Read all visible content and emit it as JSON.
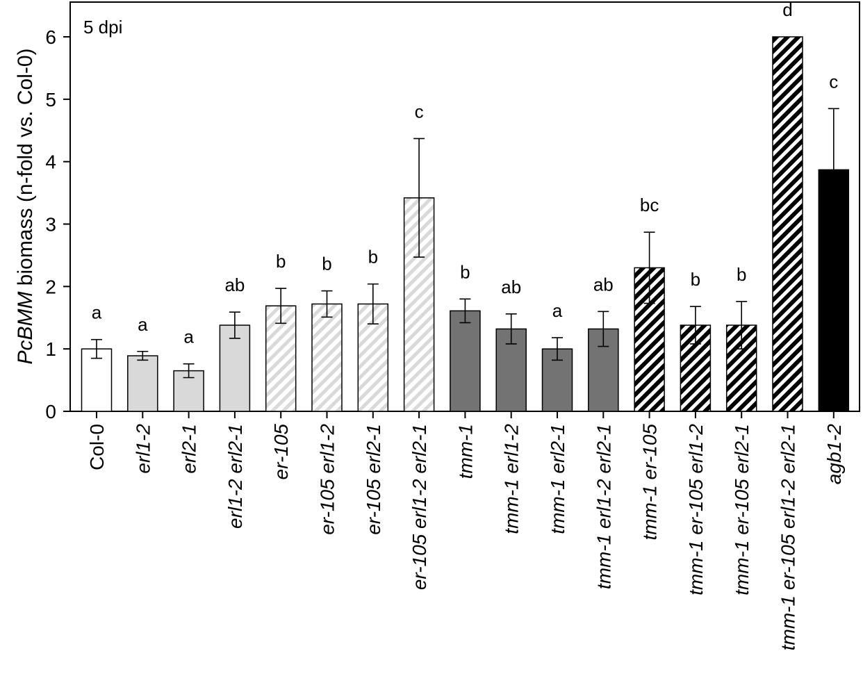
{
  "chart_data": {
    "type": "bar",
    "annotation": "5 dpi",
    "ylabel_italic": "PcBMM",
    "ylabel_rest": " biomass (n-fold vs. Col-0)",
    "xlabel": "",
    "ylim": [
      0,
      6.5
    ],
    "yticks": [
      "0",
      "1",
      "2",
      "3",
      "4",
      "5",
      "6"
    ],
    "grid": false,
    "categories": [
      "Col-0",
      "erl1-2",
      "erl2-1",
      "erl1-2 erl2-1",
      "er-105",
      "er-105 erl1-2",
      "er-105 erl2-1",
      "er-105 erl1-2 erl2-1",
      "tmm-1",
      "tmm-1 erl1-2",
      "tmm-1 erl2-1",
      "tmm-1 erl1-2 erl2-1",
      "tmm-1 er-105",
      "tmm-1 er-105 erl1-2",
      "tmm-1 er-105 erl2-1",
      "tmm-1 er-105 erl1-2 erl2-1",
      "agb1-2"
    ],
    "values": [
      1.0,
      0.89,
      0.65,
      1.38,
      1.69,
      1.72,
      1.72,
      3.42,
      1.61,
      1.32,
      1.0,
      1.32,
      2.3,
      1.38,
      1.38,
      6.0,
      3.87
    ],
    "errors": [
      0.15,
      0.07,
      0.11,
      0.21,
      0.28,
      0.21,
      0.32,
      0.95,
      0.19,
      0.24,
      0.18,
      0.28,
      0.57,
      0.3,
      0.38,
      0.0,
      0.98
    ],
    "significance": [
      "a",
      "a",
      "a",
      "ab",
      "b",
      "b",
      "b",
      "c",
      "b",
      "ab",
      "a",
      "ab",
      "bc",
      "b",
      "b",
      "d",
      "c"
    ],
    "styles": [
      "white",
      "lightgray",
      "lightgray",
      "lightgray",
      "lighthatch",
      "lighthatch",
      "lighthatch",
      "lighthatch",
      "darkgray",
      "darkgray",
      "darkgray",
      "darkgray",
      "blackhatch",
      "blackhatch",
      "blackhatch",
      "blackhatch",
      "black"
    ],
    "colors": {
      "white": "#ffffff",
      "lightgray": "#d9d9d9",
      "lighthatch": "#d9d9d9",
      "darkgray": "#737373",
      "blackhatch": "#000000",
      "black": "#000000"
    }
  }
}
